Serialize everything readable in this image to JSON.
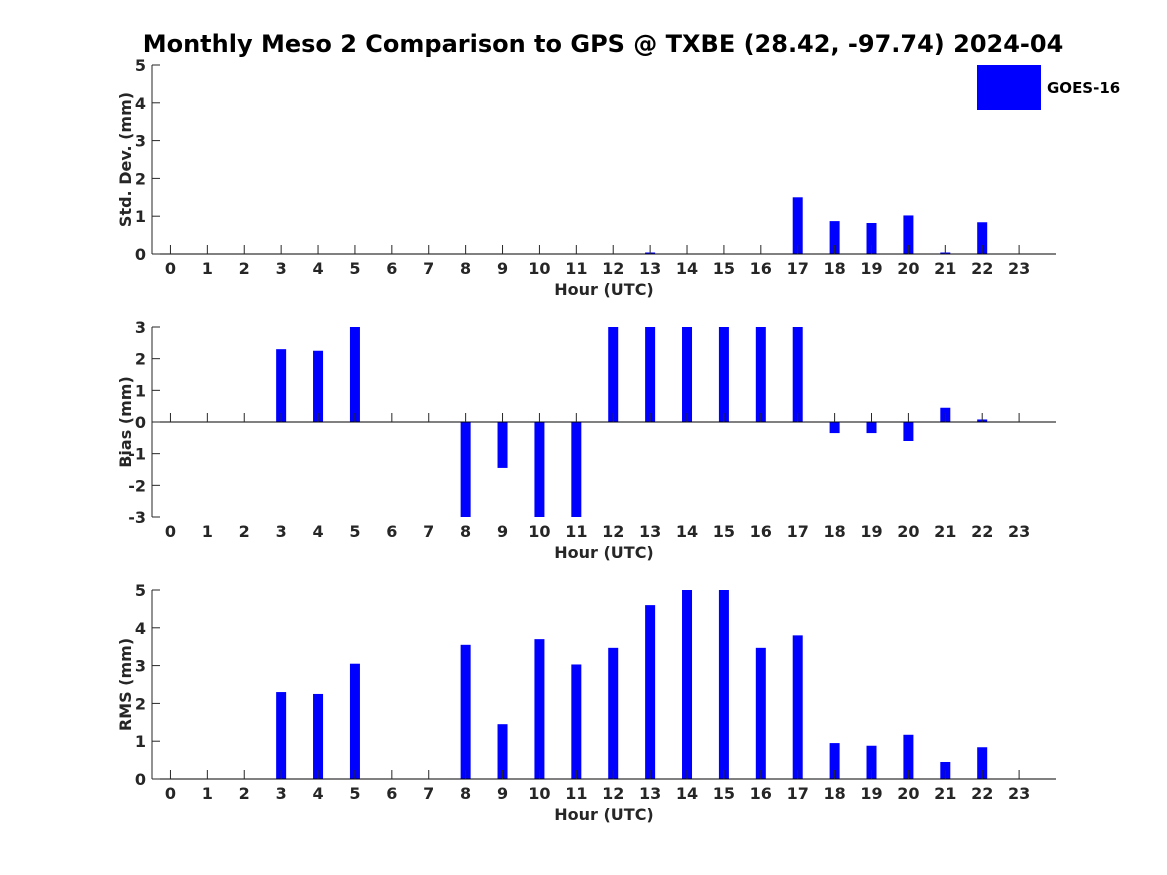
{
  "title": "Monthly Meso 2 Comparison to GPS @ TXBE (28.42, -97.74) 2024-04",
  "legend": {
    "label": "GOES-16",
    "placement": "top-right"
  },
  "colors": {
    "bar": "#0000ff",
    "axis": "#262626",
    "background": "#ffffff"
  },
  "chart_data": [
    {
      "type": "bar",
      "xlabel": "Hour (UTC)",
      "ylabel": "Std. Dev. (mm)",
      "ylim": [
        0,
        5
      ],
      "yticks": [
        0,
        1,
        2,
        3,
        4,
        5
      ],
      "categories": [
        "0",
        "1",
        "2",
        "3",
        "4",
        "5",
        "6",
        "7",
        "8",
        "9",
        "10",
        "11",
        "12",
        "13",
        "14",
        "15",
        "16",
        "17",
        "18",
        "19",
        "20",
        "21",
        "22",
        "23"
      ],
      "series": [
        {
          "name": "GOES-16",
          "values": [
            null,
            null,
            null,
            0,
            0,
            0,
            null,
            null,
            0,
            0,
            0,
            0,
            0,
            0.04,
            0,
            0,
            0,
            1.5,
            0.87,
            0.82,
            1.02,
            0.04,
            0.84,
            null
          ]
        }
      ],
      "grid": false
    },
    {
      "type": "bar",
      "xlabel": "Hour (UTC)",
      "ylabel": "Bias (mm)",
      "ylim": [
        -3,
        3
      ],
      "yticks": [
        -3,
        -2,
        -1,
        0,
        1,
        2,
        3
      ],
      "categories": [
        "0",
        "1",
        "2",
        "3",
        "4",
        "5",
        "6",
        "7",
        "8",
        "9",
        "10",
        "11",
        "12",
        "13",
        "14",
        "15",
        "16",
        "17",
        "18",
        "19",
        "20",
        "21",
        "22",
        "23"
      ],
      "series": [
        {
          "name": "GOES-16",
          "values": [
            null,
            null,
            null,
            2.3,
            2.25,
            3,
            null,
            null,
            -3,
            -1.45,
            -3,
            -3,
            3,
            3,
            3,
            3,
            3,
            3,
            -0.35,
            -0.35,
            -0.6,
            0.45,
            0.08,
            null
          ]
        }
      ],
      "grid": false
    },
    {
      "type": "bar",
      "xlabel": "Hour (UTC)",
      "ylabel": "RMS (mm)",
      "ylim": [
        0,
        5
      ],
      "yticks": [
        0,
        1,
        2,
        3,
        4,
        5
      ],
      "categories": [
        "0",
        "1",
        "2",
        "3",
        "4",
        "5",
        "6",
        "7",
        "8",
        "9",
        "10",
        "11",
        "12",
        "13",
        "14",
        "15",
        "16",
        "17",
        "18",
        "19",
        "20",
        "21",
        "22",
        "23"
      ],
      "series": [
        {
          "name": "GOES-16",
          "values": [
            null,
            null,
            null,
            2.3,
            2.25,
            3.05,
            null,
            null,
            3.55,
            1.45,
            3.7,
            3.03,
            3.47,
            4.6,
            5,
            5,
            3.47,
            3.8,
            0.95,
            0.88,
            1.17,
            0.45,
            0.84,
            null
          ]
        }
      ],
      "grid": false
    }
  ]
}
